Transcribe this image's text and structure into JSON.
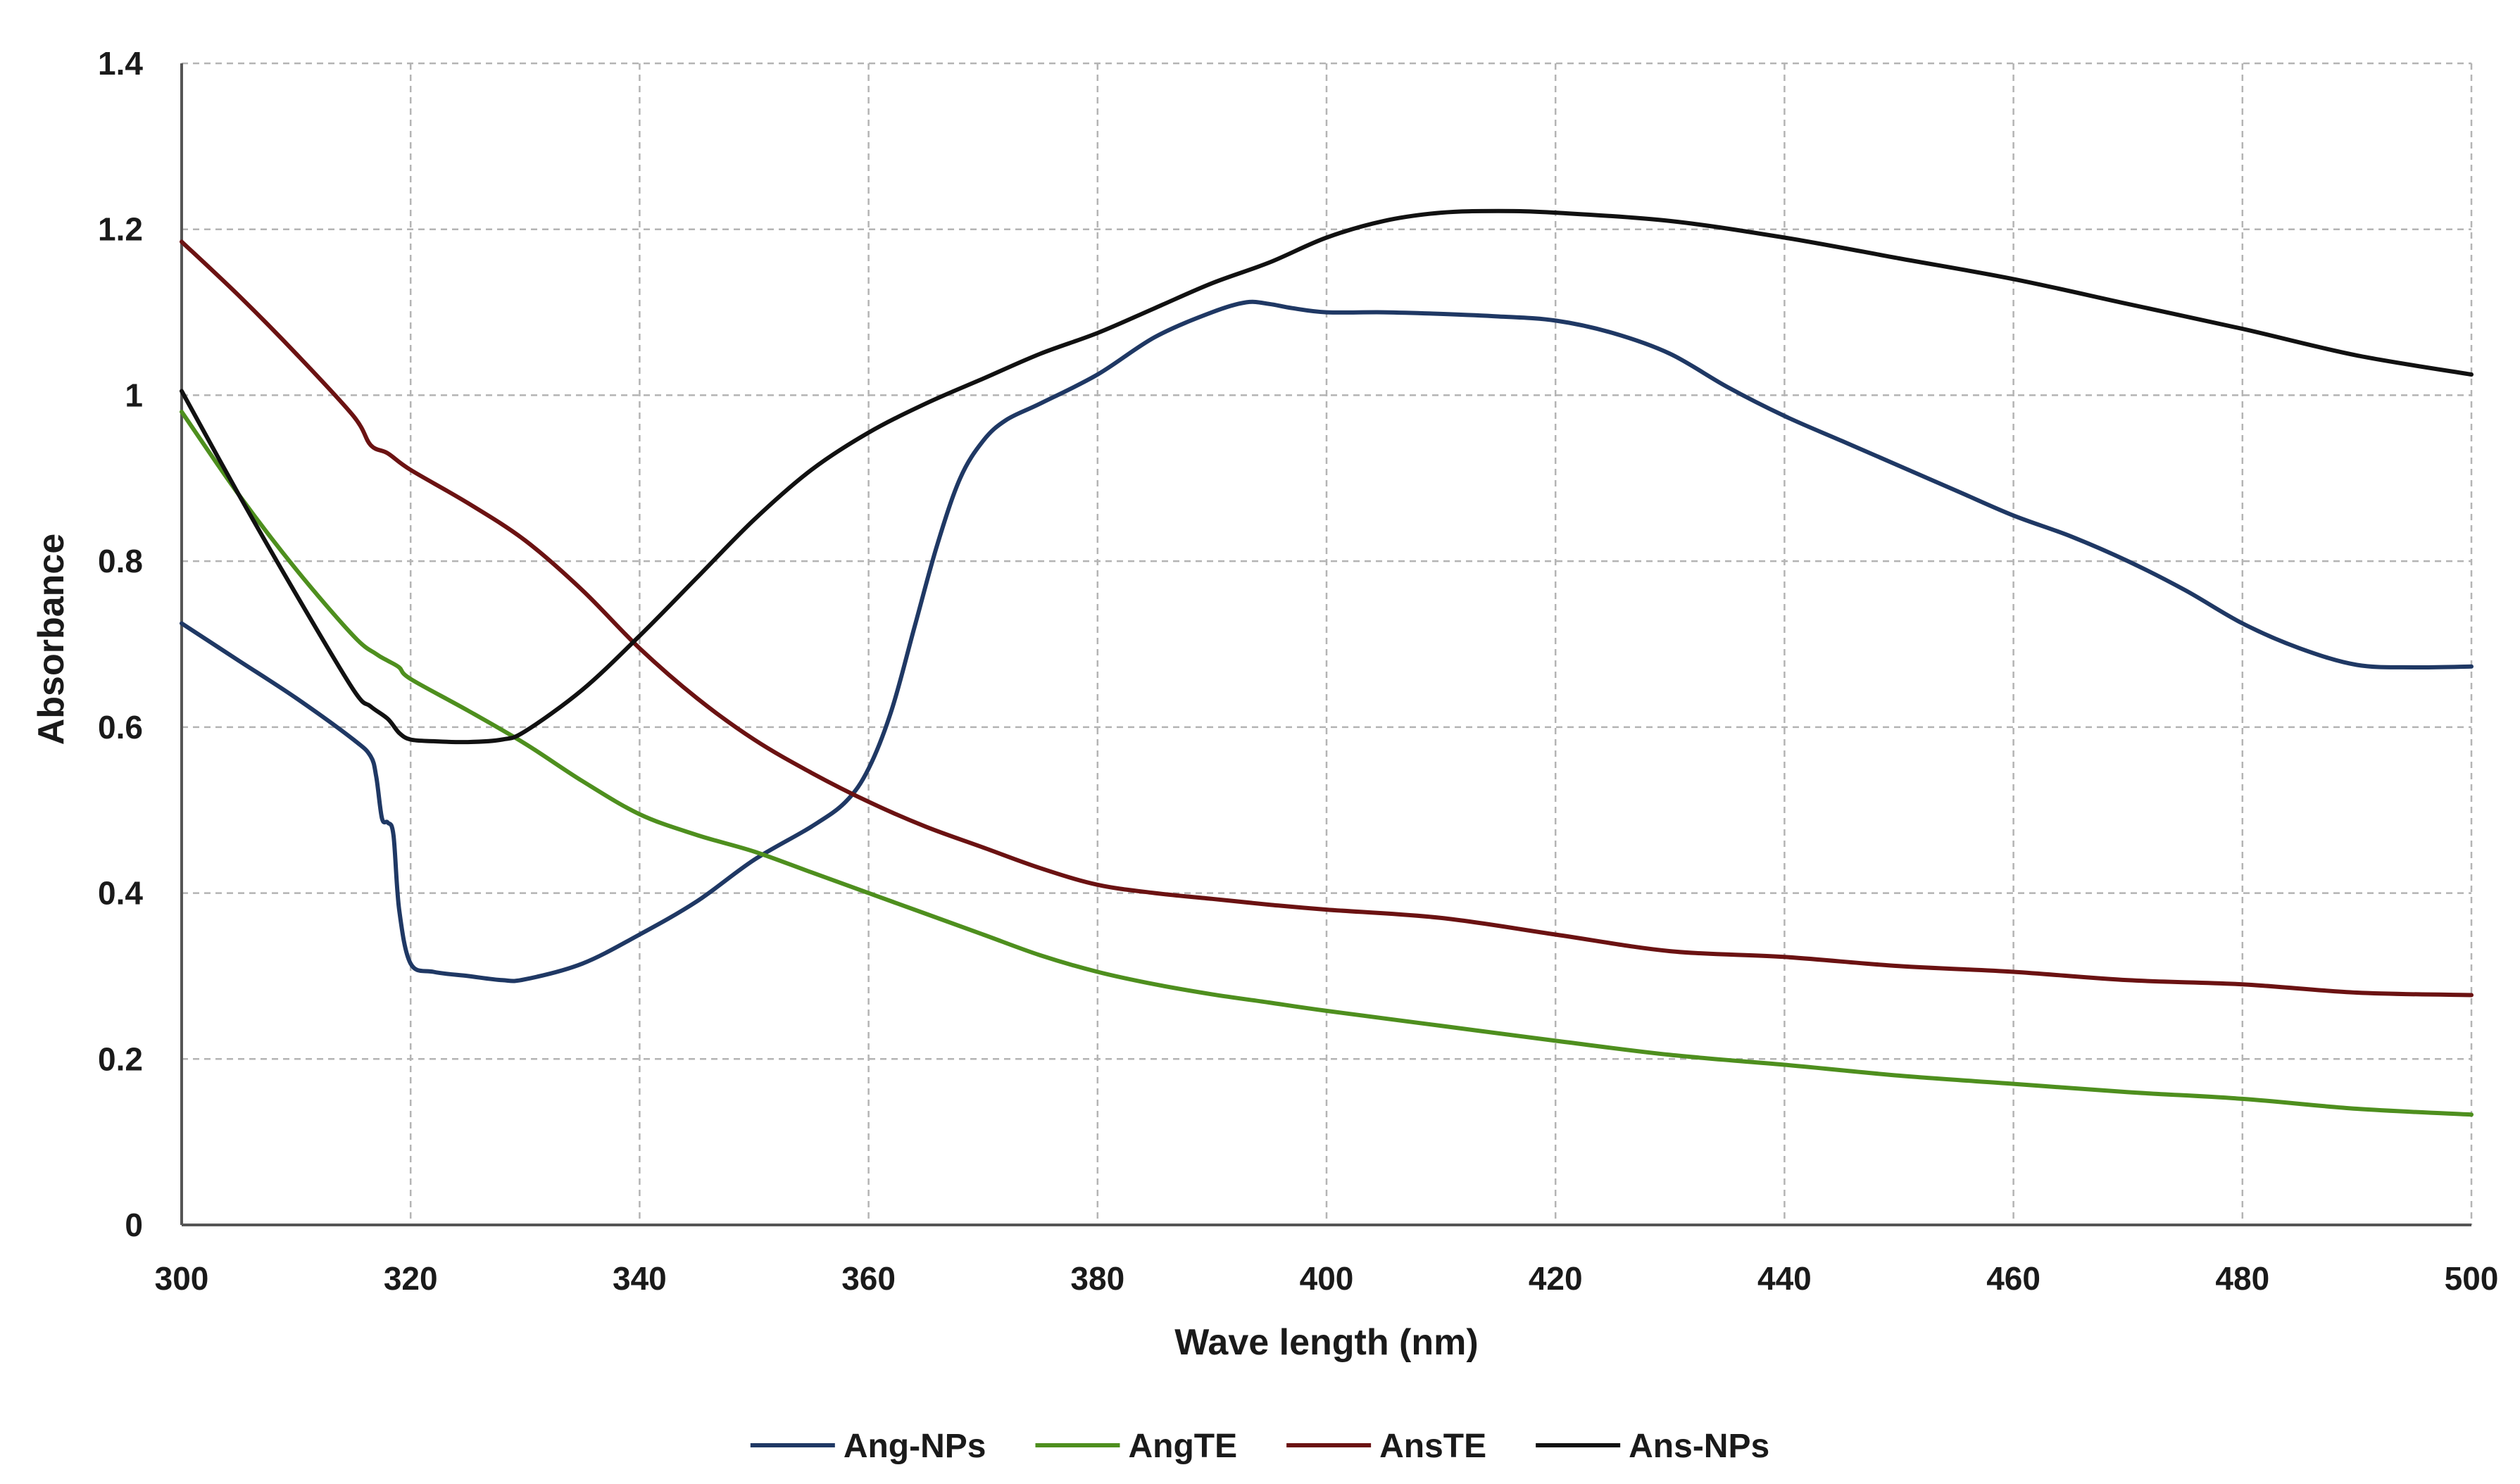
{
  "chart_data": {
    "type": "line",
    "title": "",
    "xlabel": "Wave length (nm)",
    "ylabel": "Absorbance",
    "xlim": [
      300,
      500
    ],
    "ylim": [
      0,
      1.4
    ],
    "x_ticks": [
      300,
      320,
      340,
      360,
      380,
      400,
      420,
      440,
      460,
      480,
      500
    ],
    "x_tick_labels": [
      "300",
      "320",
      "340",
      "360",
      "380",
      "400",
      "420",
      "440",
      "460",
      "480",
      "500"
    ],
    "y_ticks": [
      0,
      0.2,
      0.4,
      0.6,
      0.8,
      1.0,
      1.2,
      1.4
    ],
    "y_tick_labels": [
      "0",
      "0.2",
      "0.4",
      "0.6",
      "0.8",
      "1",
      "1.2",
      "1.4"
    ],
    "grid": true,
    "legend_position": "bottom-center",
    "series": [
      {
        "name": "Ang-NPs",
        "color": "#1f3864",
        "x": [
          300,
          305,
          310,
          315,
          316.5,
          317,
          317.5,
          318,
          318.5,
          319,
          320,
          322,
          325,
          328,
          330,
          335,
          340,
          345,
          350,
          355,
          358,
          360,
          362,
          364,
          366,
          368,
          370,
          372,
          375,
          380,
          385,
          390,
          393,
          395,
          397,
          400,
          405,
          410,
          415,
          420,
          425,
          430,
          435,
          440,
          445,
          450,
          455,
          460,
          465,
          470,
          475,
          480,
          485,
          490,
          495,
          500
        ],
        "y": [
          0.725,
          0.68,
          0.635,
          0.585,
          0.565,
          0.54,
          0.49,
          0.485,
          0.47,
          0.38,
          0.315,
          0.305,
          0.3,
          0.295,
          0.296,
          0.315,
          0.35,
          0.39,
          0.44,
          0.48,
          0.51,
          0.55,
          0.62,
          0.72,
          0.82,
          0.9,
          0.945,
          0.97,
          0.99,
          1.025,
          1.07,
          1.1,
          1.112,
          1.11,
          1.105,
          1.1,
          1.1,
          1.098,
          1.095,
          1.09,
          1.075,
          1.05,
          1.01,
          0.975,
          0.945,
          0.915,
          0.885,
          0.855,
          0.83,
          0.8,
          0.765,
          0.725,
          0.695,
          0.675,
          0.672,
          0.673
        ]
      },
      {
        "name": "AngTE",
        "color": "#4e8f1e",
        "x": [
          300,
          305,
          310,
          315,
          317,
          318,
          319,
          320,
          325,
          330,
          335,
          340,
          345,
          350,
          355,
          360,
          365,
          370,
          375,
          380,
          385,
          390,
          395,
          400,
          410,
          420,
          430,
          440,
          450,
          460,
          470,
          480,
          490,
          500
        ],
        "y": [
          0.98,
          0.88,
          0.79,
          0.71,
          0.688,
          0.68,
          0.672,
          0.658,
          0.62,
          0.58,
          0.535,
          0.495,
          0.47,
          0.45,
          0.425,
          0.4,
          0.375,
          0.35,
          0.325,
          0.305,
          0.29,
          0.278,
          0.268,
          0.258,
          0.24,
          0.222,
          0.205,
          0.193,
          0.18,
          0.17,
          0.16,
          0.152,
          0.14,
          0.133
        ]
      },
      {
        "name": "AnsTE",
        "color": "#6b1212",
        "x": [
          300,
          305,
          310,
          315,
          316.5,
          318,
          320,
          325,
          330,
          335,
          340,
          345,
          350,
          355,
          360,
          365,
          370,
          375,
          380,
          385,
          390,
          395,
          400,
          410,
          420,
          430,
          440,
          450,
          460,
          470,
          480,
          490,
          500
        ],
        "y": [
          1.185,
          1.12,
          1.05,
          0.975,
          0.94,
          0.93,
          0.91,
          0.87,
          0.825,
          0.765,
          0.695,
          0.635,
          0.585,
          0.545,
          0.51,
          0.48,
          0.455,
          0.43,
          0.41,
          0.4,
          0.393,
          0.386,
          0.38,
          0.37,
          0.35,
          0.33,
          0.323,
          0.312,
          0.305,
          0.295,
          0.29,
          0.28,
          0.277
        ]
      },
      {
        "name": "Ans-NPs",
        "color": "#111111",
        "x": [
          300,
          305,
          310,
          315,
          316.5,
          318,
          319,
          320,
          322,
          325,
          328,
          330,
          335,
          340,
          345,
          350,
          355,
          360,
          365,
          370,
          375,
          380,
          385,
          390,
          395,
          400,
          405,
          410,
          415,
          420,
          430,
          440,
          450,
          460,
          470,
          480,
          490,
          500
        ],
        "y": [
          1.005,
          0.88,
          0.76,
          0.645,
          0.625,
          0.61,
          0.593,
          0.585,
          0.583,
          0.582,
          0.585,
          0.595,
          0.645,
          0.71,
          0.78,
          0.85,
          0.91,
          0.955,
          0.99,
          1.02,
          1.05,
          1.075,
          1.105,
          1.135,
          1.16,
          1.19,
          1.21,
          1.22,
          1.222,
          1.22,
          1.21,
          1.19,
          1.165,
          1.14,
          1.11,
          1.08,
          1.048,
          1.025
        ]
      }
    ]
  }
}
